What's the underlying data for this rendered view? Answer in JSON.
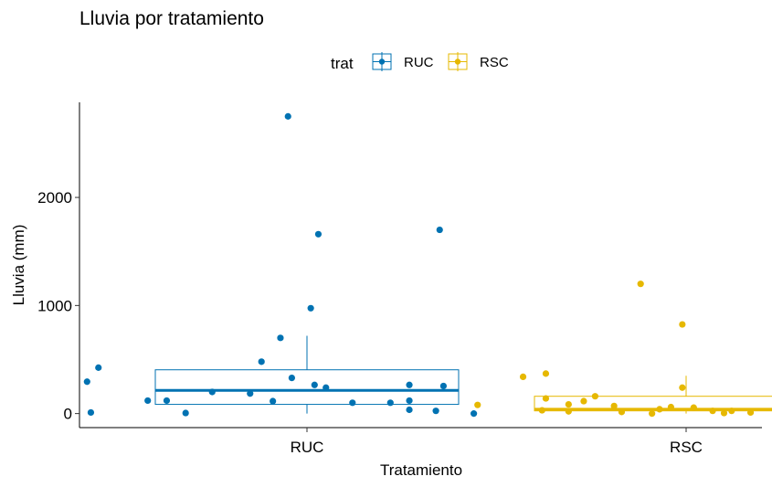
{
  "chart_data": {
    "type": "box",
    "title": "Lluvia por tratamiento",
    "xlabel": "Tratamiento",
    "ylabel": "Lluvia (mm)",
    "categories": [
      "RUC",
      "RSC"
    ],
    "ylim": [
      -130,
      2880
    ],
    "yticks": [
      0,
      1000,
      2000
    ],
    "grid": false,
    "legend": {
      "title": "trat",
      "position": "top",
      "entries": [
        {
          "label": "RUC",
          "color": "#0072B2"
        },
        {
          "label": "RSC",
          "color": "#E6B800"
        }
      ]
    },
    "series": [
      {
        "name": "RUC",
        "color": "#0072B2",
        "box": {
          "whisker_low": 0,
          "q1": 85,
          "median": 215,
          "q3": 405,
          "whisker_high": 720
        },
        "points": [
          {
            "x": -0.05,
            "y": 2750
          },
          {
            "x": 0.35,
            "y": 1700
          },
          {
            "x": 0.03,
            "y": 1660
          },
          {
            "x": 0.01,
            "y": 975
          },
          {
            "x": -0.07,
            "y": 700
          },
          {
            "x": -0.12,
            "y": 480
          },
          {
            "x": -0.55,
            "y": 425
          },
          {
            "x": -0.58,
            "y": 295
          },
          {
            "x": -0.04,
            "y": 330
          },
          {
            "x": 0.02,
            "y": 265
          },
          {
            "x": 0.27,
            "y": 265
          },
          {
            "x": 0.36,
            "y": 255
          },
          {
            "x": 0.05,
            "y": 240
          },
          {
            "x": -0.25,
            "y": 200
          },
          {
            "x": -0.15,
            "y": 185
          },
          {
            "x": -0.42,
            "y": 120
          },
          {
            "x": -0.37,
            "y": 120
          },
          {
            "x": 0.22,
            "y": 100
          },
          {
            "x": -0.09,
            "y": 115
          },
          {
            "x": 0.12,
            "y": 100
          },
          {
            "x": 0.27,
            "y": 120
          },
          {
            "x": -0.57,
            "y": 10
          },
          {
            "x": -0.32,
            "y": 5
          },
          {
            "x": 0.27,
            "y": 35
          },
          {
            "x": 0.34,
            "y": 25
          },
          {
            "x": 0.44,
            "y": 0
          }
        ]
      },
      {
        "name": "RSC",
        "color": "#E6B800",
        "box": {
          "whisker_low": 0,
          "q1": 25,
          "median": 40,
          "q3": 160,
          "whisker_high": 350
        },
        "points": [
          {
            "x": -0.12,
            "y": 1200
          },
          {
            "x": -0.01,
            "y": 825
          },
          {
            "x": -0.43,
            "y": 340
          },
          {
            "x": -0.37,
            "y": 370
          },
          {
            "x": 0.28,
            "y": 320
          },
          {
            "x": -0.01,
            "y": 240
          },
          {
            "x": -0.37,
            "y": 140
          },
          {
            "x": -0.24,
            "y": 160
          },
          {
            "x": -0.27,
            "y": 115
          },
          {
            "x": -0.55,
            "y": 80
          },
          {
            "x": -0.31,
            "y": 85
          },
          {
            "x": -0.19,
            "y": 70
          },
          {
            "x": -0.04,
            "y": 60
          },
          {
            "x": 0.02,
            "y": 55
          },
          {
            "x": -0.38,
            "y": 30
          },
          {
            "x": -0.31,
            "y": 20
          },
          {
            "x": -0.17,
            "y": 15
          },
          {
            "x": -0.07,
            "y": 40
          },
          {
            "x": 0.12,
            "y": 25
          },
          {
            "x": 0.07,
            "y": 25
          },
          {
            "x": 0.17,
            "y": 10
          },
          {
            "x": 0.26,
            "y": 20
          },
          {
            "x": 0.38,
            "y": 25
          },
          {
            "x": -0.09,
            "y": 0
          },
          {
            "x": 0.1,
            "y": 5
          }
        ]
      }
    ]
  }
}
